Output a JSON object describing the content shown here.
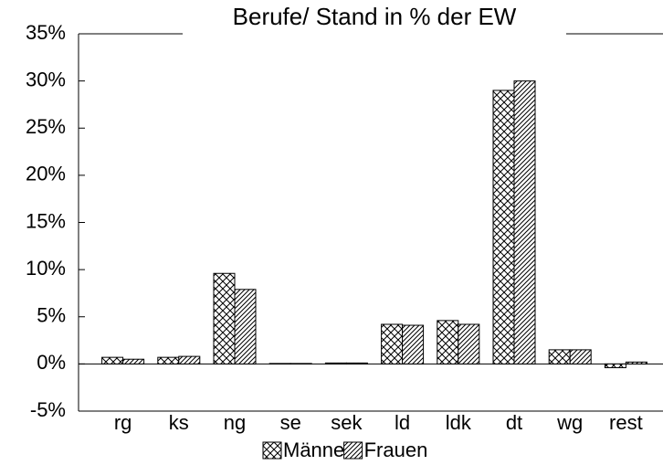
{
  "chart_data": {
    "type": "bar",
    "title": "Berufe/ Stand in % der EW",
    "categories": [
      "rg",
      "ks",
      "ng",
      "se",
      "sek",
      "ld",
      "ldk",
      "dt",
      "wg",
      "rest"
    ],
    "series": [
      {
        "name": "Männer",
        "color": "#000000",
        "pattern": "crosshatch",
        "values": [
          0.7,
          0.7,
          9.6,
          0.05,
          0.1,
          4.2,
          4.6,
          29.0,
          1.5,
          -0.4
        ]
      },
      {
        "name": "Frauen",
        "color": "#000000",
        "pattern": "diagonal",
        "values": [
          0.5,
          0.8,
          7.9,
          0.05,
          0.1,
          4.1,
          4.2,
          30.0,
          1.5,
          0.2
        ]
      }
    ],
    "ylim": [
      -5,
      35
    ],
    "yticks": [
      {
        "value": -5,
        "label": "-5%"
      },
      {
        "value": 0,
        "label": "0%"
      },
      {
        "value": 5,
        "label": "5%"
      },
      {
        "value": 10,
        "label": "10%"
      },
      {
        "value": 15,
        "label": "15%"
      },
      {
        "value": 20,
        "label": "20%"
      },
      {
        "value": 25,
        "label": "25%"
      },
      {
        "value": 30,
        "label": "30%"
      },
      {
        "value": 35,
        "label": "35%"
      }
    ],
    "legend": "bottom"
  }
}
